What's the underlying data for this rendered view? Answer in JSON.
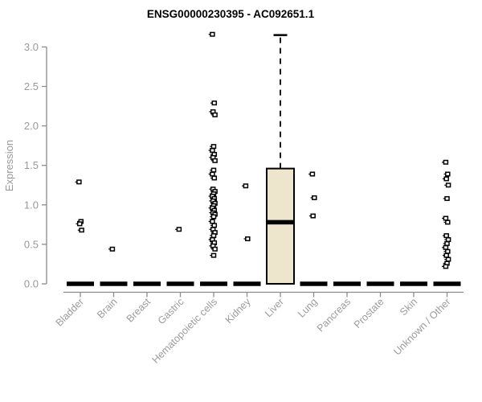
{
  "chart_data": {
    "type": "boxplot",
    "title": "ENSG00000230395 - AC092651.1",
    "ylabel": "Expression",
    "xlabel": "",
    "ylim": [
      0.0,
      3.0
    ],
    "yticks": [
      0.0,
      0.5,
      1.0,
      1.5,
      2.0,
      2.5,
      3.0
    ],
    "ytick_labels": [
      "0.0",
      "0.5",
      "1.0",
      "1.5",
      "2.0",
      "2.5",
      "3.0"
    ],
    "grid": "off",
    "legend": "none",
    "colors": {
      "box_fill": "#EDE6CD",
      "box_stroke": "#000000",
      "zero_bar": "#000000",
      "outlier": "#000000",
      "axis_line": "#8C8C8C",
      "tick_label": "#999999",
      "title": "#000000",
      "background": "#FFFFFF"
    },
    "categories": [
      "Bladder",
      "Brain",
      "Breast",
      "Gastric",
      "Hematopoietic cells",
      "Kidney",
      "Liver",
      "Lung",
      "Pancreas",
      "Prostate",
      "Skin",
      "Unknown / Other"
    ],
    "series": [
      {
        "category": "Bladder",
        "q1": 0,
        "median": 0,
        "q3": 0,
        "whisker_low": 0,
        "whisker_high": 0,
        "outliers": [
          1.29,
          0.79,
          0.76,
          0.68
        ]
      },
      {
        "category": "Brain",
        "q1": 0,
        "median": 0,
        "q3": 0,
        "whisker_low": 0,
        "whisker_high": 0,
        "outliers": [
          0.44
        ]
      },
      {
        "category": "Breast",
        "q1": 0,
        "median": 0,
        "q3": 0,
        "whisker_low": 0,
        "whisker_high": 0,
        "outliers": []
      },
      {
        "category": "Gastric",
        "q1": 0,
        "median": 0,
        "q3": 0,
        "whisker_low": 0,
        "whisker_high": 0,
        "outliers": [
          0.69
        ]
      },
      {
        "category": "Hematopoietic cells",
        "q1": 0,
        "median": 0,
        "q3": 0,
        "whisker_low": 0,
        "whisker_high": 0,
        "outliers": [
          3.16,
          2.29,
          2.18,
          2.14,
          1.74,
          1.69,
          1.64,
          1.6,
          1.56,
          1.44,
          1.39,
          1.34,
          1.2,
          1.17,
          1.14,
          1.11,
          1.08,
          1.05,
          1.02,
          0.99,
          0.96,
          0.93,
          0.9,
          0.88,
          0.85,
          0.79,
          0.74,
          0.69,
          0.65,
          0.61,
          0.56,
          0.52,
          0.48,
          0.44,
          0.36
        ]
      },
      {
        "category": "Kidney",
        "q1": 0,
        "median": 0,
        "q3": 0,
        "whisker_low": 0,
        "whisker_high": 0,
        "outliers": [
          1.24,
          0.57
        ]
      },
      {
        "category": "Liver",
        "q1": 0,
        "median": 0.78,
        "q3": 1.46,
        "whisker_low": 0,
        "whisker_high": 3.15,
        "outliers": []
      },
      {
        "category": "Lung",
        "q1": 0,
        "median": 0,
        "q3": 0,
        "whisker_low": 0,
        "whisker_high": 0,
        "outliers": [
          1.39,
          1.09,
          0.86
        ]
      },
      {
        "category": "Pancreas",
        "q1": 0,
        "median": 0,
        "q3": 0,
        "whisker_low": 0,
        "whisker_high": 0,
        "outliers": []
      },
      {
        "category": "Prostate",
        "q1": 0,
        "median": 0,
        "q3": 0,
        "whisker_low": 0,
        "whisker_high": 0,
        "outliers": []
      },
      {
        "category": "Skin",
        "q1": 0,
        "median": 0,
        "q3": 0,
        "whisker_low": 0,
        "whisker_high": 0,
        "outliers": []
      },
      {
        "category": "Unknown / Other",
        "q1": 0,
        "median": 0,
        "q3": 0,
        "whisker_low": 0,
        "whisker_high": 0,
        "outliers": [
          1.54,
          1.39,
          1.33,
          1.25,
          1.08,
          0.83,
          0.78,
          0.61,
          0.56,
          0.51,
          0.46,
          0.41,
          0.36,
          0.31,
          0.26,
          0.22
        ]
      }
    ]
  }
}
